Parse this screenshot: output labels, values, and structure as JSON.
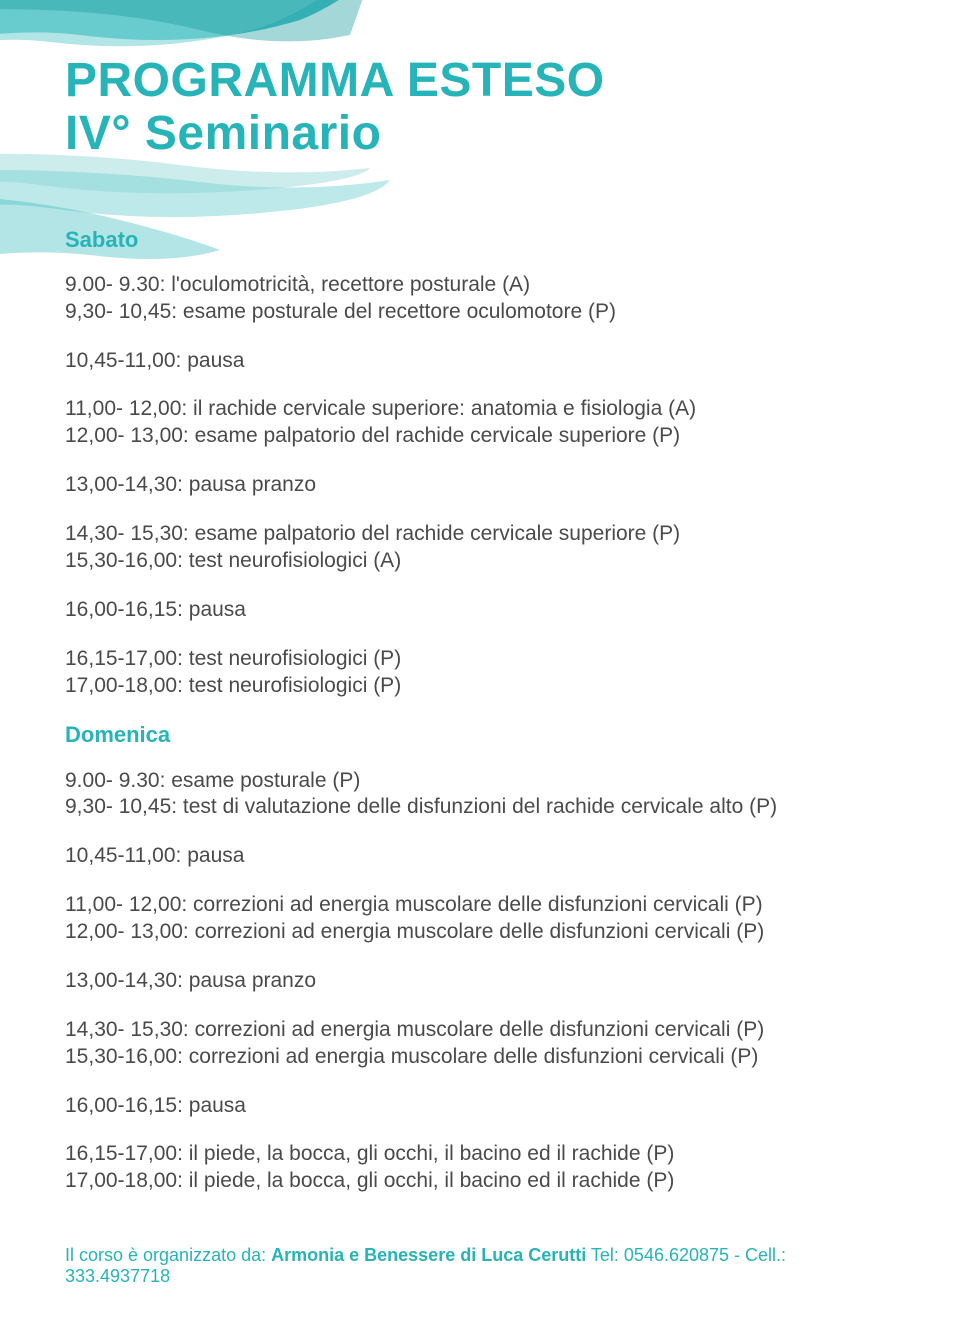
{
  "colors": {
    "accent": "#26b4b8",
    "accent_light": "#7ed4d6",
    "accent_dark": "#1a9a9e",
    "text": "#4a4a4a",
    "background": "#ffffff"
  },
  "typography": {
    "title_fontsize": 48,
    "title_weight": 700,
    "body_fontsize": 21,
    "day_label_fontsize": 22,
    "footer_fontsize": 18,
    "font_family": "Segoe UI, Arial, sans-serif"
  },
  "title": {
    "line1": "PROGRAMMA ESTESO",
    "line2": "IV° Seminario"
  },
  "days": [
    {
      "label": "Sabato",
      "blocks": [
        {
          "lines": [
            "9.00- 9.30: l'oculomotricità, recettore posturale (A)",
            "9,30- 10,45: esame posturale del recettore oculomotore (P)"
          ]
        },
        {
          "lines": [
            "10,45-11,00: pausa"
          ]
        },
        {
          "lines": [
            "11,00- 12,00: il rachide cervicale superiore: anatomia e fisiologia (A)",
            "12,00- 13,00: esame palpatorio del rachide cervicale superiore (P)"
          ]
        },
        {
          "lines": [
            "13,00-14,30: pausa pranzo"
          ]
        },
        {
          "lines": [
            "14,30- 15,30: esame palpatorio del rachide cervicale superiore (P)",
            "15,30-16,00: test neurofisiologici (A)"
          ]
        },
        {
          "lines": [
            "16,00-16,15: pausa"
          ]
        },
        {
          "lines": [
            "16,15-17,00: test neurofisiologici (P)",
            "17,00-18,00: test neurofisiologici (P)"
          ]
        }
      ]
    },
    {
      "label": "Domenica",
      "blocks": [
        {
          "lines": [
            "9.00- 9.30: esame posturale (P)",
            "9,30- 10,45: test di valutazione delle disfunzioni del rachide cervicale alto (P)"
          ]
        },
        {
          "lines": [
            "10,45-11,00: pausa"
          ]
        },
        {
          "lines": [
            "11,00- 12,00: correzioni ad energia muscolare delle disfunzioni cervicali (P)",
            "12,00- 13,00: correzioni ad energia muscolare delle disfunzioni cervicali (P)"
          ]
        },
        {
          "lines": [
            "13,00-14,30: pausa pranzo"
          ]
        },
        {
          "lines": [
            "14,30- 15,30: correzioni ad energia muscolare delle disfunzioni cervicali (P)",
            "15,30-16,00: correzioni ad energia muscolare delle disfunzioni cervicali (P)"
          ]
        },
        {
          "lines": [
            "16,00-16,15: pausa"
          ]
        },
        {
          "lines": [
            "16,15-17,00: il piede, la bocca, gli occhi, il bacino ed il rachide (P)",
            "17,00-18,00: il piede, la bocca, gli occhi, il bacino ed il rachide (P)"
          ]
        }
      ]
    }
  ],
  "footer": {
    "intro": "Il corso è organizzato da: ",
    "org_name": "Armonia e Benessere di Luca Cerutti",
    "contact": " Tel: 0546.620875 - Cell.: 333.4937718"
  }
}
